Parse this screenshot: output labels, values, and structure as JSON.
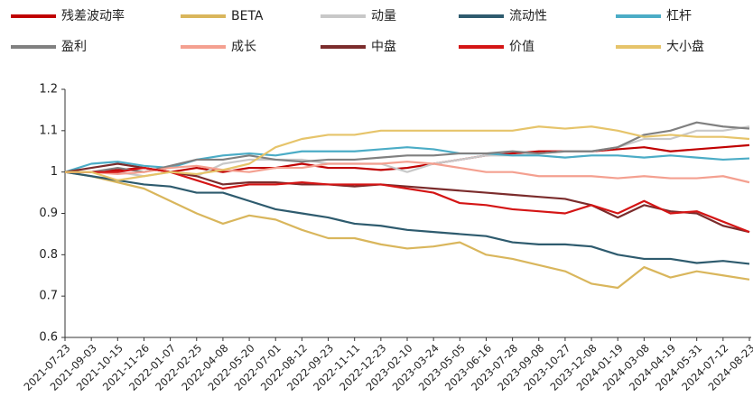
{
  "chart_data": {
    "type": "line",
    "categories": [
      "2021-07-23",
      "2021-09-03",
      "2021-10-15",
      "2021-11-26",
      "2022-01-07",
      "2022-02-25",
      "2022-04-08",
      "2022-05-20",
      "2022-07-01",
      "2022-08-12",
      "2022-09-23",
      "2022-11-11",
      "2022-12-23",
      "2023-02-10",
      "2023-03-24",
      "2023-05-05",
      "2023-06-16",
      "2023-07-28",
      "2023-09-08",
      "2023-10-27",
      "2023-12-08",
      "2024-01-19",
      "2024-03-08",
      "2024-04-19",
      "2024-05-31",
      "2024-07-12",
      "2024-08-23"
    ],
    "ylim": [
      0.6,
      1.2
    ],
    "yticks": [
      0.6,
      0.7,
      0.8,
      0.9,
      1,
      1.1,
      1.2
    ],
    "grid": false,
    "legend": "top",
    "series": [
      {
        "name": "残差波动率",
        "color": "#c00000",
        "values": [
          1,
          1.0,
          1.005,
          1.01,
          1.0,
          1.01,
          1.0,
          1.01,
          1.01,
          1.02,
          1.01,
          1.01,
          1.005,
          1.01,
          1.02,
          1.03,
          1.04,
          1.045,
          1.05,
          1.05,
          1.05,
          1.055,
          1.06,
          1.05,
          1.055,
          1.06,
          1.065
        ]
      },
      {
        "name": "BETA",
        "color": "#d9b65c",
        "values": [
          1,
          0.99,
          0.975,
          0.96,
          0.93,
          0.9,
          0.875,
          0.895,
          0.885,
          0.86,
          0.84,
          0.84,
          0.825,
          0.815,
          0.82,
          0.83,
          0.8,
          0.79,
          0.775,
          0.76,
          0.73,
          0.72,
          0.77,
          0.745,
          0.76,
          0.75,
          0.74
        ]
      },
      {
        "name": "动量",
        "color": "#c8c8c8",
        "values": [
          1,
          1.0,
          1.0,
          0.99,
          1.0,
          0.99,
          1.02,
          1.03,
          1.03,
          1.03,
          1.02,
          1.02,
          1.02,
          1.0,
          1.02,
          1.03,
          1.04,
          1.04,
          1.045,
          1.05,
          1.05,
          1.06,
          1.08,
          1.08,
          1.1,
          1.1,
          1.11
        ]
      },
      {
        "name": "流动性",
        "color": "#2e5b6e",
        "values": [
          1,
          0.99,
          0.98,
          0.97,
          0.965,
          0.95,
          0.95,
          0.93,
          0.91,
          0.9,
          0.89,
          0.875,
          0.87,
          0.86,
          0.855,
          0.85,
          0.845,
          0.83,
          0.825,
          0.825,
          0.82,
          0.8,
          0.79,
          0.79,
          0.78,
          0.785,
          0.778
        ]
      },
      {
        "name": "杠杆",
        "color": "#4bacc6",
        "values": [
          1,
          1.02,
          1.025,
          1.015,
          1.01,
          1.03,
          1.04,
          1.045,
          1.04,
          1.05,
          1.05,
          1.05,
          1.055,
          1.06,
          1.055,
          1.045,
          1.045,
          1.04,
          1.04,
          1.035,
          1.04,
          1.04,
          1.035,
          1.04,
          1.035,
          1.03,
          1.033
        ]
      },
      {
        "name": "盈利",
        "color": "#808080",
        "values": [
          1,
          1.0,
          1.01,
          1.0,
          1.015,
          1.03,
          1.03,
          1.04,
          1.03,
          1.025,
          1.03,
          1.03,
          1.035,
          1.04,
          1.04,
          1.045,
          1.045,
          1.05,
          1.045,
          1.05,
          1.05,
          1.06,
          1.09,
          1.1,
          1.12,
          1.11,
          1.105
        ]
      },
      {
        "name": "成长",
        "color": "#f4a090",
        "values": [
          1,
          1.0,
          0.995,
          1.0,
          1.01,
          1.015,
          1.005,
          1.0,
          1.01,
          1.01,
          1.02,
          1.02,
          1.02,
          1.025,
          1.02,
          1.01,
          1.0,
          1.0,
          0.99,
          0.99,
          0.99,
          0.985,
          0.99,
          0.985,
          0.985,
          0.99,
          0.975
        ]
      },
      {
        "name": "中盘",
        "color": "#7b2c2c",
        "values": [
          1,
          1.01,
          1.02,
          1.01,
          1.0,
          0.99,
          0.97,
          0.975,
          0.975,
          0.97,
          0.97,
          0.965,
          0.97,
          0.965,
          0.96,
          0.955,
          0.95,
          0.945,
          0.94,
          0.935,
          0.92,
          0.89,
          0.92,
          0.905,
          0.9,
          0.87,
          0.855
        ]
      },
      {
        "name": "价值",
        "color": "#d41515",
        "values": [
          1,
          1.0,
          1.0,
          1.01,
          1.0,
          0.98,
          0.96,
          0.97,
          0.97,
          0.975,
          0.97,
          0.97,
          0.97,
          0.96,
          0.95,
          0.925,
          0.92,
          0.91,
          0.905,
          0.9,
          0.92,
          0.9,
          0.93,
          0.9,
          0.905,
          0.88,
          0.855
        ]
      },
      {
        "name": "大小盘",
        "color": "#e6c46a",
        "values": [
          1,
          1.0,
          0.98,
          0.99,
          1.0,
          0.995,
          1.005,
          1.02,
          1.06,
          1.08,
          1.09,
          1.09,
          1.1,
          1.1,
          1.1,
          1.1,
          1.1,
          1.1,
          1.11,
          1.105,
          1.11,
          1.1,
          1.085,
          1.09,
          1.085,
          1.085,
          1.08
        ]
      }
    ]
  }
}
